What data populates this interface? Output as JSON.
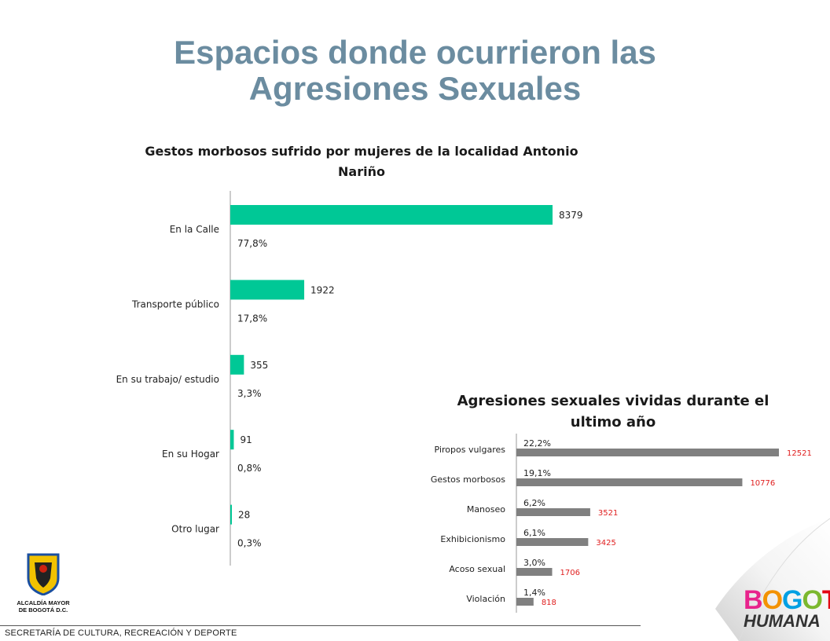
{
  "title_lines": [
    "Espacios donde ocurrieron las",
    "Agresiones Sexuales"
  ],
  "footer": "SECRETARÍA DE CULTURA, RECREACIÓN Y DEPORTE",
  "logo_left": {
    "caption_lines": [
      "ALCALDÍA MAYOR",
      "DE BOGOTÁ D.C."
    ]
  },
  "logo_right": {
    "line1": "BOGOTÁ",
    "line2": "HUMANA"
  },
  "colors": {
    "title": "#6b8ca0",
    "bar1": "#00c896",
    "bar2": "#808080",
    "label2": "#e02020"
  },
  "chart_data": [
    {
      "type": "bar",
      "orientation": "horizontal",
      "title_lines": [
        "Gestos morbosos sufrido por mujeres de la localidad Antonio",
        "Nariño"
      ],
      "categories": [
        "En la Calle",
        "Transporte público",
        "En su trabajo/ estudio",
        "En su Hogar",
        "Otro lugar"
      ],
      "values": [
        8379,
        1922,
        355,
        91,
        28
      ],
      "percent_labels": [
        "77,8%",
        "17,8%",
        "3,3%",
        "0,8%",
        "0,3%"
      ],
      "xlim": [
        0,
        8379
      ]
    },
    {
      "type": "bar",
      "orientation": "horizontal",
      "title_lines": [
        "Agresiones sexuales vividas durante el",
        "ultimo año"
      ],
      "categories": [
        "Piropos vulgares",
        "Gestos morbosos",
        "Manoseo",
        "Exhibicionismo",
        "Acoso sexual",
        "Violación"
      ],
      "values": [
        12521,
        10776,
        3521,
        3425,
        1706,
        818
      ],
      "percent_labels": [
        "22,2%",
        "19,1%",
        "6,2%",
        "6,1%",
        "3,0%",
        "1,4%"
      ],
      "xlim": [
        0,
        12521
      ]
    }
  ]
}
